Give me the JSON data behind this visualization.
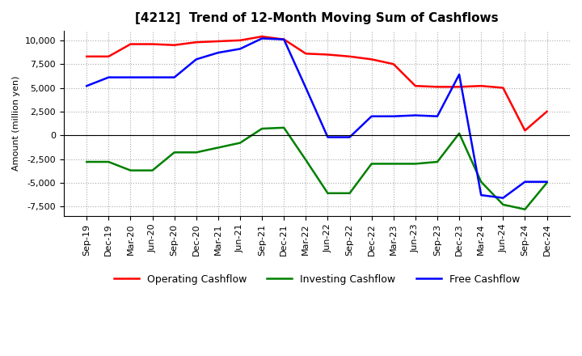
{
  "title": "[4212]  Trend of 12-Month Moving Sum of Cashflows",
  "ylabel": "Amount (million yen)",
  "ylim": [
    -8500,
    11000
  ],
  "yticks": [
    -7500,
    -5000,
    -2500,
    0,
    2500,
    5000,
    7500,
    10000
  ],
  "x_labels": [
    "Sep-19",
    "Dec-19",
    "Mar-20",
    "Jun-20",
    "Sep-20",
    "Dec-20",
    "Mar-21",
    "Jun-21",
    "Sep-21",
    "Dec-21",
    "Mar-22",
    "Jun-22",
    "Sep-22",
    "Dec-22",
    "Mar-23",
    "Jun-23",
    "Sep-23",
    "Dec-23",
    "Mar-24",
    "Jun-24",
    "Sep-24",
    "Dec-24"
  ],
  "operating": [
    8300,
    8300,
    9600,
    9600,
    9500,
    9800,
    9900,
    10000,
    10400,
    10100,
    8600,
    8500,
    8300,
    8000,
    7500,
    5200,
    5100,
    5100,
    5200,
    5000,
    500,
    2500
  ],
  "investing": [
    -2800,
    -2800,
    -3700,
    -3700,
    -1800,
    -1800,
    -1300,
    -800,
    700,
    800,
    -2600,
    -6100,
    -6100,
    -3000,
    -3000,
    -3000,
    -2800,
    200,
    -4900,
    -7300,
    -7800,
    -5000
  ],
  "free": [
    5200,
    6100,
    6100,
    6100,
    6100,
    8000,
    8700,
    9100,
    10200,
    10100,
    5000,
    -200,
    -200,
    2000,
    2000,
    2100,
    2000,
    6400,
    -6300,
    -6600,
    -4900,
    -4900
  ],
  "op_color": "#ff0000",
  "inv_color": "#008000",
  "free_color": "#0000ff",
  "background_color": "#ffffff",
  "grid_color": "#aaaaaa",
  "title_fontsize": 11,
  "tick_fontsize": 8,
  "legend_fontsize": 9
}
